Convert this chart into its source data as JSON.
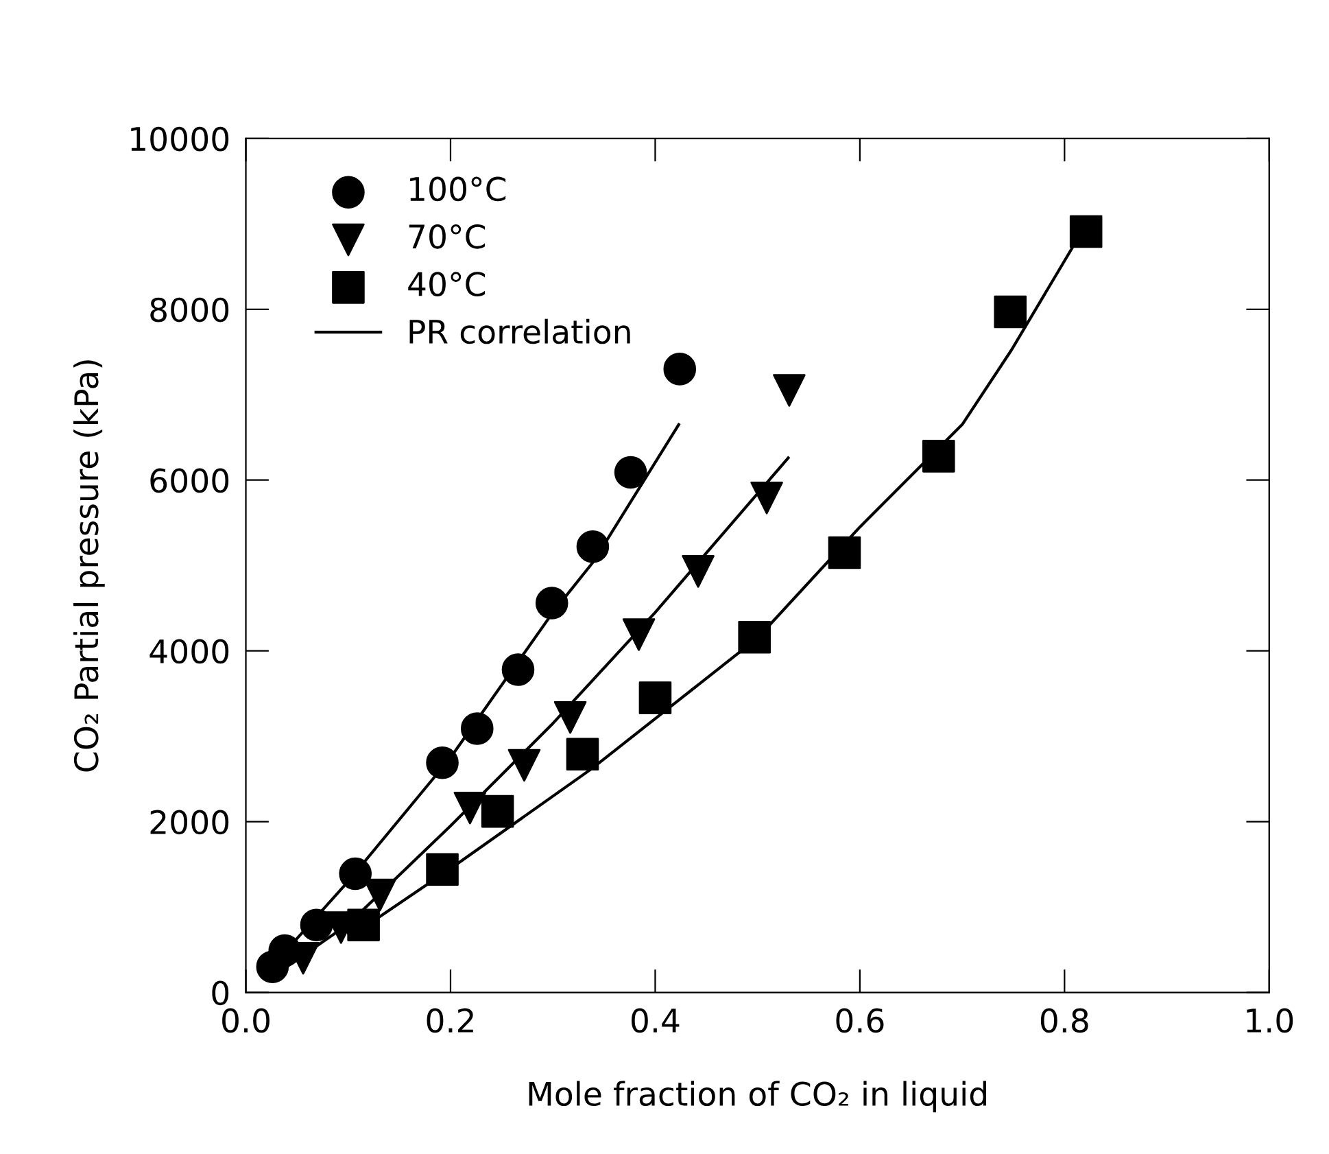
{
  "chart_data": {
    "type": "scatter",
    "xlabel": "Mole fraction of CO₂ in liquid",
    "ylabel": "CO₂ Partial pressure (kPa)",
    "xlim": [
      0,
      1.0
    ],
    "xticks": [
      {
        "value": 0,
        "label": "0.0"
      },
      0.2,
      0.4,
      0.6,
      0.8,
      {
        "value": 1.0,
        "label": "1.0"
      }
    ],
    "ylim": [
      0,
      10000
    ],
    "yticks": [
      0,
      2000,
      4000,
      6000,
      8000,
      10000
    ],
    "grid": false,
    "legend": "top left",
    "series": [
      {
        "name": "100°C",
        "marker": "circle",
        "color": "#000000",
        "x": [
          0.026,
          0.038,
          0.069,
          0.107,
          0.192,
          0.226,
          0.266,
          0.299,
          0.339,
          0.376,
          0.424
        ],
        "values": [
          300,
          490,
          790,
          1390,
          2690,
          3090,
          3780,
          4560,
          5220,
          6090,
          7300
        ]
      },
      {
        "name": "70°C",
        "marker": "triangle",
        "color": "#000000",
        "x": [
          0.056,
          0.093,
          0.131,
          0.219,
          0.272,
          0.317,
          0.384,
          0.442,
          0.509,
          0.531
        ],
        "values": [
          400,
          760,
          1140,
          2160,
          2660,
          3220,
          4190,
          4930,
          5790,
          7050
        ]
      },
      {
        "name": "40°C",
        "marker": "square",
        "color": "#000000",
        "x": [
          0.115,
          0.192,
          0.246,
          0.329,
          0.4,
          0.497,
          0.585,
          0.677,
          0.747,
          0.821
        ],
        "values": [
          790,
          1440,
          2120,
          2790,
          3450,
          4160,
          5150,
          6280,
          7970,
          8910
        ]
      },
      {
        "name": "PR correlation",
        "type": "line",
        "marker": "none",
        "line_style": "solid",
        "color": "#000000",
        "x": [
          0.02,
          0.1,
          0.2,
          0.3,
          0.34,
          0.423
        ],
        "values": [
          230,
          1300,
          2750,
          4450,
          5050,
          6650
        ]
      },
      {
        "type": "line",
        "marker": "none",
        "line_style": "solid",
        "color": "#000000",
        "x": [
          0.04,
          0.1,
          0.2,
          0.3,
          0.4,
          0.53
        ],
        "values": [
          300,
          800,
          1950,
          3150,
          4450,
          6260
        ]
      },
      {
        "type": "line",
        "marker": "none",
        "line_style": "solid",
        "color": "#000000",
        "x": [
          0.1,
          0.12,
          0.2,
          0.338,
          0.5,
          0.6,
          0.7,
          0.748,
          0.815
        ],
        "values": [
          700,
          800,
          1450,
          2620,
          4150,
          5450,
          6650,
          7520,
          8870
        ]
      }
    ]
  }
}
